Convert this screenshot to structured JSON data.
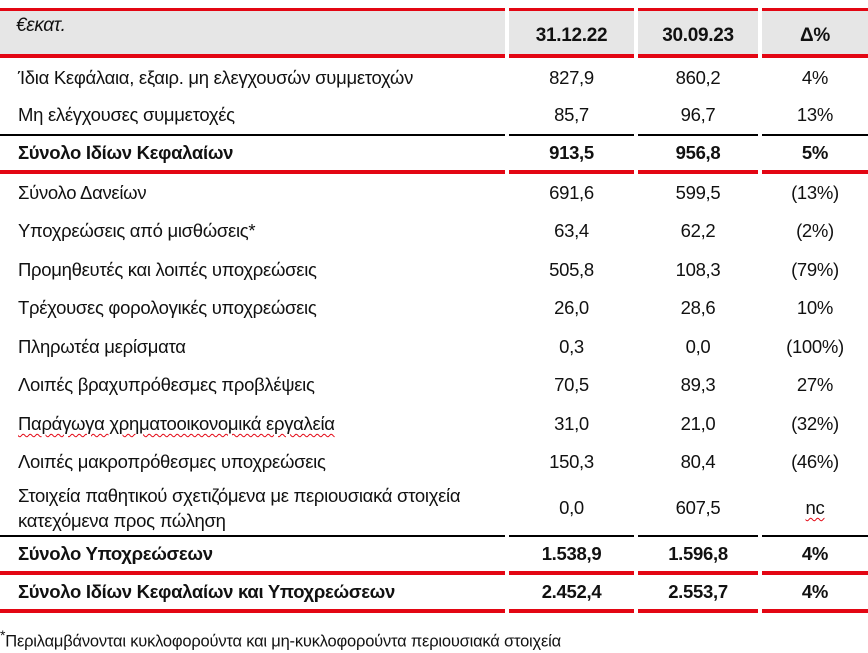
{
  "header": {
    "unit": "€εκατ.",
    "col1": "31.12.22",
    "col2": "30.09.23",
    "col3": "Δ%"
  },
  "rows": [
    {
      "label": "Ίδια Κεφάλαια, εξαιρ.  μη ελεγχουσών συμμετοχών",
      "v1": "827,9",
      "v2": "860,2",
      "d": "4%"
    },
    {
      "label": "Μη ελέγχουσες συμμετοχές",
      "v1": "85,7",
      "v2": "96,7",
      "d": "13%"
    },
    {
      "label": "Σύνολο Ιδίων Κεφαλαίων",
      "v1": "913,5",
      "v2": "956,8",
      "d": "5%"
    },
    {
      "label": "Σύνολο Δανείων",
      "v1": "691,6",
      "v2": "599,5",
      "d": "(13%)"
    },
    {
      "label": "Υποχρεώσεις από μισθώσεις*",
      "v1": "63,4",
      "v2": "62,2",
      "d": "(2%)"
    },
    {
      "label": "Προμηθευτές και λοιπές υποχρεώσεις",
      "v1": "505,8",
      "v2": "108,3",
      "d": "(79%)"
    },
    {
      "label": "Τρέχουσες φορολογικές υποχρεώσεις",
      "v1": "26,0",
      "v2": "28,6",
      "d": "10%"
    },
    {
      "label": "Πληρωτέα μερίσματα",
      "v1": "0,3",
      "v2": "0,0",
      "d": "(100%)"
    },
    {
      "label": "Λοιπές βραχυπρόθεσμες προβλέψεις",
      "v1": "70,5",
      "v2": "89,3",
      "d": "27%"
    },
    {
      "label": "Παράγωγα χρηματοοικονομικά εργαλεία",
      "v1": "31,0",
      "v2": "21,0",
      "d": "(32%)"
    },
    {
      "label": "Λοιπές μακροπρόθεσμες υποχρεώσεις",
      "v1": "150,3",
      "v2": "80,4",
      "d": "(46%)"
    },
    {
      "label": "Στοιχεία παθητικού σχετιζόμενα με περιουσιακά στοιχεία κατεχόμενα προς πώληση",
      "v1": "0,0",
      "v2": "607,5",
      "d": "nc"
    },
    {
      "label": "Σύνολο Υποχρεώσεων",
      "v1": "1.538,9",
      "v2": "1.596,8",
      "d": "4%"
    },
    {
      "label": "Σύνολο Ιδίων Κεφαλαίων και Υποχρεώσεων",
      "v1": "2.452,4",
      "v2": "2.553,7",
      "d": "4%"
    }
  ],
  "footnote": {
    "mark": "*",
    "text": "Περιλαμβάνονται κυκλοφορούντα και μη-κυκλοφορούντα περιουσιακά στοιχεία"
  },
  "colors": {
    "accent": "#e30613",
    "header_bg": "#e6e6e6"
  }
}
